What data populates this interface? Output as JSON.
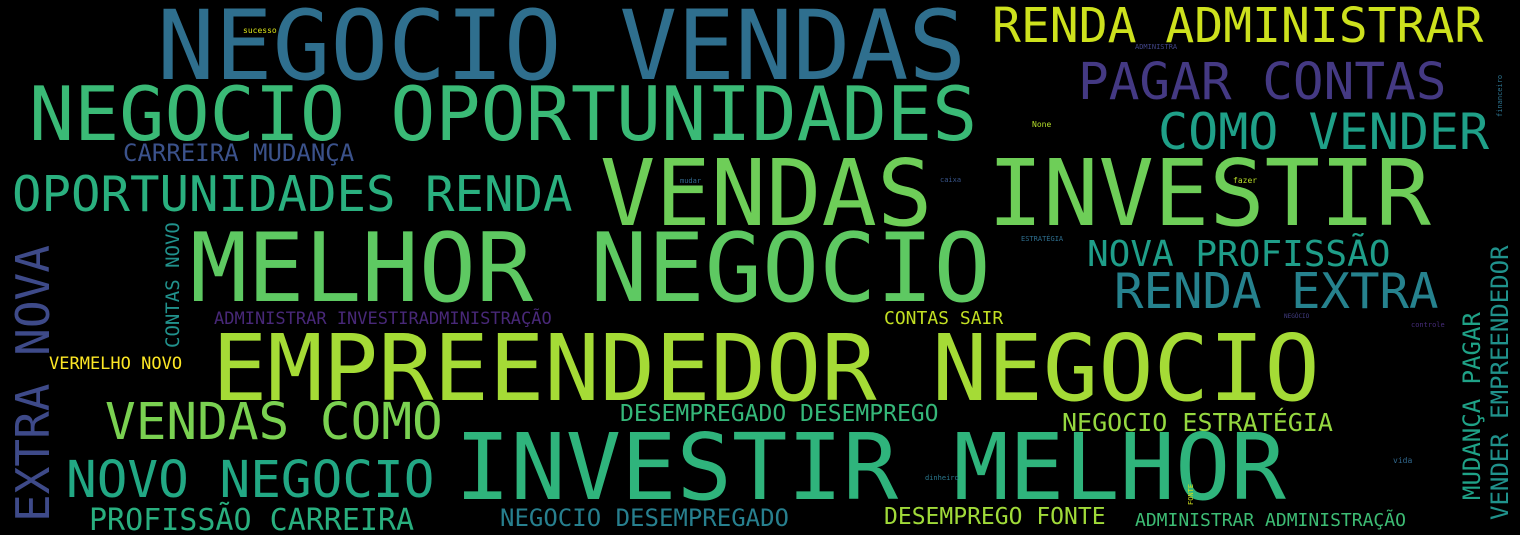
{
  "words": [
    {
      "text": "NEGOCIO VENDAS",
      "color": "#2f6f8e"
    },
    {
      "text": "RENDA ADMINISTRAR",
      "color": "#cde11d"
    },
    {
      "text": "NEGOCIO OPORTUNIDADES",
      "color": "#3aba76"
    },
    {
      "text": "PAGAR CONTAS",
      "color": "#443983"
    },
    {
      "text": "COMO VENDER",
      "color": "#1fa088"
    },
    {
      "text": "CARREIRA MUDANÇA",
      "color": "#3b528b"
    },
    {
      "text": "OPORTUNIDADES RENDA",
      "color": "#2ab07f"
    },
    {
      "text": "VENDAS INVESTIR",
      "color": "#6ece58"
    },
    {
      "text": "MELHOR NEGOCIO",
      "color": "#5ec962"
    },
    {
      "text": "NOVA PROFISSÃO",
      "color": "#1f9e89"
    },
    {
      "text": "RENDA EXTRA",
      "color": "#26828e"
    },
    {
      "text": "ADMINISTRAR INVESTIRADMINISTRAÇÃO",
      "color": "#482878"
    },
    {
      "text": "CONTAS SAIR",
      "color": "#c2df23"
    },
    {
      "text": "EMPREENDEDOR NEGOCIO",
      "color": "#a5db36"
    },
    {
      "text": "VERMELHO NOVO",
      "color": "#fde725"
    },
    {
      "text": "VENDAS COMO",
      "color": "#7ad151"
    },
    {
      "text": "DESEMPREGADO DESEMPREGO",
      "color": "#35b779"
    },
    {
      "text": "NEGOCIO ESTRATÉGIA",
      "color": "#95d840"
    },
    {
      "text": "INVESTIR MELHOR",
      "color": "#2fb47c"
    },
    {
      "text": "NOVO NEGOCIO",
      "color": "#22a884"
    },
    {
      "text": "PROFISSÃO CARREIRA",
      "color": "#29af7f"
    },
    {
      "text": "NEGOCIO DESEMPREGADO",
      "color": "#277f8e"
    },
    {
      "text": "DESEMPREGO FONTE",
      "color": "#a0da39"
    },
    {
      "text": "ADMINISTRAR ADMINISTRAÇÃO",
      "color": "#3dbc74"
    },
    {
      "text": "EXTRA NOVA",
      "color": "#3e4a89"
    },
    {
      "text": "CONTAS NOVO",
      "color": "#21918c"
    },
    {
      "text": "MUDANÇA PAGAR",
      "color": "#1fa287"
    },
    {
      "text": "VENDER EMPREENDEDOR",
      "color": "#20928c"
    },
    {
      "text": "sucesso",
      "color": "#d8e219"
    },
    {
      "text": "ADMINISTRA",
      "color": "#414487"
    },
    {
      "text": "financeiro",
      "color": "#2c728e"
    },
    {
      "text": "None",
      "color": "#b5de2b"
    },
    {
      "text": "mudar",
      "color": "#31688e"
    },
    {
      "text": "caixa",
      "color": "#39568c"
    },
    {
      "text": "fazer",
      "color": "#b8de29"
    },
    {
      "text": "ESTRATÉGIA",
      "color": "#2e6e8e"
    },
    {
      "text": "NEGÓCIO",
      "color": "#433e85"
    },
    {
      "text": "controle",
      "color": "#472d7b"
    },
    {
      "text": "vida",
      "color": "#31688e"
    },
    {
      "text": "dinheiro",
      "color": "#2a788e"
    },
    {
      "text": "FONTE",
      "color": "#d0e11c"
    }
  ]
}
